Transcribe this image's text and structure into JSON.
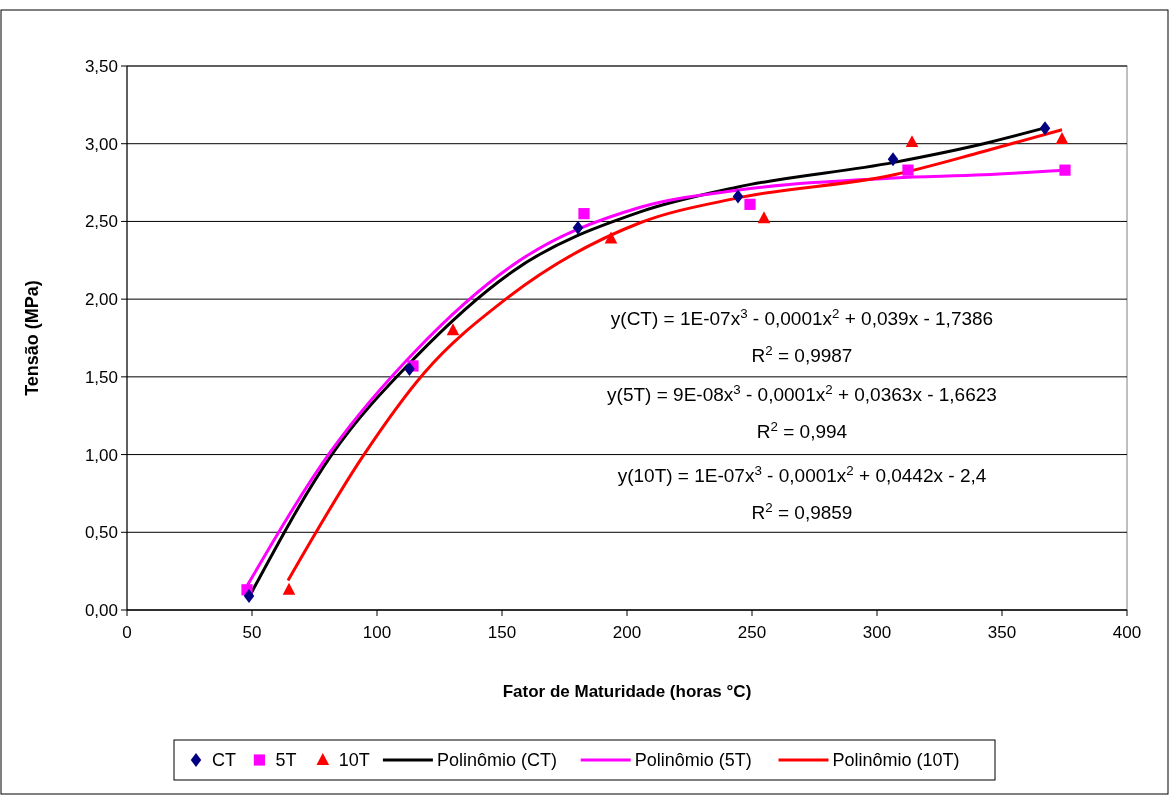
{
  "chart_data": {
    "type": "scatter",
    "xlabel": "Fator de Maturidade (horas °C)",
    "ylabel": "Tensão (MPa)",
    "xlim": [
      0,
      400
    ],
    "xticks": [
      0,
      50,
      100,
      150,
      200,
      250,
      300,
      350,
      400
    ],
    "ylim": [
      0,
      3.5
    ],
    "yticks": [
      {
        "value": 0,
        "label": "0,00"
      },
      {
        "value": 0.5,
        "label": "0,50"
      },
      {
        "value": 1,
        "label": "1,00"
      },
      {
        "value": 1.5,
        "label": "1,50"
      },
      {
        "value": 2,
        "label": "2,00"
      },
      {
        "value": 2.5,
        "label": "2,50"
      },
      {
        "value": 3,
        "label": "3,00"
      },
      {
        "value": 3.5,
        "label": "3,50"
      }
    ],
    "grid": "y",
    "legend": "bottom",
    "series": [
      {
        "name": "CT",
        "type": "scatter",
        "marker": "diamond",
        "color": "#000080",
        "x": [
          48.8,
          113,
          180.4,
          244.4,
          306.4,
          367.2
        ],
        "values": [
          0.09,
          1.55,
          2.46,
          2.66,
          2.9,
          3.1
        ]
      },
      {
        "name": "5T",
        "type": "scatter",
        "marker": "square",
        "color": "#ff00ff",
        "x": [
          48,
          114.4,
          182.8,
          249.2,
          312.4,
          375.2
        ],
        "values": [
          0.13,
          1.57,
          2.55,
          2.61,
          2.83,
          2.83
        ]
      },
      {
        "name": "10T",
        "type": "scatter",
        "marker": "triangle",
        "color": "#ff0000",
        "x": [
          64.8,
          130.4,
          193.6,
          254.8,
          314,
          374
        ],
        "values": [
          0.13,
          1.8,
          2.39,
          2.52,
          3.01,
          3.03
        ]
      },
      {
        "name": "Polinômio (CT)",
        "type": "line",
        "marker": "none",
        "color": "#000000",
        "x": [
          49.4,
          81.5,
          115.6,
          154.4,
          205,
          244,
          306.8,
          342.6,
          366.8
        ],
        "values": [
          0.1,
          0.99,
          1.63,
          2.18,
          2.56,
          2.72,
          2.88,
          3.0,
          3.1
        ]
      },
      {
        "name": "Polinômio (5T)",
        "type": "line",
        "marker": "none",
        "color": "#ff00ff",
        "x": [
          48.2,
          81.5,
          115.6,
          154.4,
          205,
          244,
          306.8,
          342.6,
          374.8
        ],
        "values": [
          0.16,
          1.02,
          1.67,
          2.22,
          2.59,
          2.7,
          2.78,
          2.8,
          2.83
        ]
      },
      {
        "name": "Polinômio (10T)",
        "type": "line",
        "marker": "none",
        "color": "#ff0000",
        "x": [
          64.4,
          94.4,
          118.6,
          151.5,
          205,
          244,
          306.8,
          342.6,
          374
        ],
        "values": [
          0.19,
          0.99,
          1.52,
          2.0,
          2.49,
          2.65,
          2.8,
          2.95,
          3.09
        ]
      }
    ],
    "annotations": [
      "y(CT) = 1E-07x$^{3}$ - 0,0001x$^{2}$ + 0,039x - 1,7386",
      "R$^{2}$ = 0,9987",
      "y(5T) = 9E-08x$^{3}$ - 0,0001x$^{2}$ + 0,0363x - 1,6623",
      "R$^{2}$ = 0,994",
      "y(10T) = 1E-07x$^{3}$ - 0,0001x$^{2}$ + 0,0442x - 2,4",
      "R$^{2}$ = 0,9859"
    ]
  }
}
